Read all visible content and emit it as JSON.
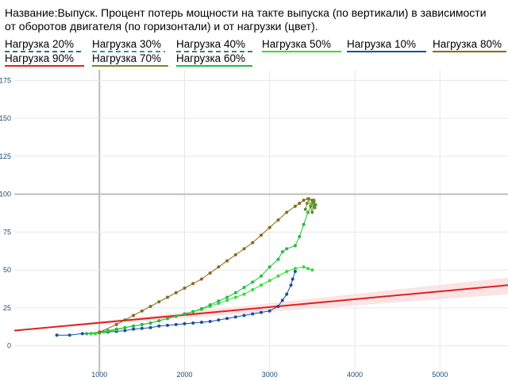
{
  "title": "Название:Выпуск. Процент потерь мощности на такте выпуска (по вертикали) в зависимости от оборотов двигателя (по горизонтали) и от нагрузки (цвет).",
  "colors": {
    "background": "#ffffff",
    "grid": "#e6e6e6",
    "axis": "#bdbdbd",
    "tick_label": "#1f4e79",
    "band": "#fce4e4"
  },
  "legend": [
    {
      "label": "Нагрузка 20%",
      "color": "#1f7a7a",
      "dashed": true
    },
    {
      "label": "Нагрузка 30%",
      "color": "#2a9d8f",
      "dashed": true
    },
    {
      "label": "Нагрузка 40%",
      "color": "#2e8b57",
      "dashed": true
    },
    {
      "label": "Нагрузка 50%",
      "color": "#33dd33",
      "dashed": false
    },
    {
      "label": "Нагрузка 10%",
      "color": "#1a4fa3",
      "dashed": false
    },
    {
      "label": "Нагрузка 80%",
      "color": "#8b6914",
      "dashed": false
    },
    {
      "label": "Нагрузка 90%",
      "color": "#e02020",
      "dashed": false
    },
    {
      "label": "Нагрузка 70%",
      "color": "#6b8e23",
      "dashed": false
    },
    {
      "label": "Нагрузка 60%",
      "color": "#22bb44",
      "dashed": false
    }
  ],
  "chart_data": {
    "type": "line",
    "title": "Название:Выпуск. Процент потерь мощности на такте выпуска (по вертикали) в зависимости от оборотов двигателя (по горизонтали) и от нагрузки (цвет).",
    "xlabel": "",
    "ylabel": "",
    "xlim": [
      0,
      5800
    ],
    "ylim": [
      -18,
      182
    ],
    "x_ticks": [
      "1000",
      "2000",
      "3000",
      "4000",
      "5000"
    ],
    "y_ticks": [
      "0",
      "25",
      "50",
      "75",
      "100",
      "125",
      "150",
      "175"
    ],
    "grid": true,
    "legend_position": "top",
    "trend_band": {
      "x": [
        0,
        5800
      ],
      "upper": [
        10,
        45
      ],
      "lower": [
        10,
        34
      ]
    },
    "trend_line": {
      "color": "#e02020",
      "x": [
        0,
        5800
      ],
      "y": [
        10,
        40
      ]
    },
    "series": [
      {
        "name": "Нагрузка 10%",
        "color": "#1a4fa3",
        "x": [
          500,
          650,
          800,
          900,
          1000,
          1100,
          1200,
          1300,
          1400,
          1500,
          1600,
          1700,
          1800,
          1900,
          2000,
          2100,
          2200,
          2300,
          2400,
          2500,
          2600,
          2700,
          2800,
          2900,
          3000,
          3100,
          3150,
          3200,
          3250,
          3270,
          3300
        ],
        "y": [
          7,
          7,
          8,
          8,
          8.5,
          9,
          9.5,
          10,
          11,
          11.5,
          12,
          13,
          13.5,
          14,
          14.5,
          15,
          15.5,
          16,
          17,
          18,
          19,
          20,
          21,
          22,
          23,
          26,
          30,
          34,
          40,
          44,
          49
        ]
      },
      {
        "name": "Нагрузка 50%",
        "color": "#33dd33",
        "x": [
          850,
          900,
          950,
          1000,
          1050,
          1100,
          1200,
          1300,
          1400,
          1500,
          1600,
          1700,
          1800,
          1900,
          2000,
          2100,
          2200,
          2300,
          2400,
          2500,
          2600,
          2700,
          2800,
          2900,
          3000,
          3100,
          3200,
          3300,
          3400,
          3450,
          3500
        ],
        "y": [
          8,
          8,
          8,
          8.5,
          9,
          9.5,
          10.5,
          12,
          13,
          14,
          15,
          16.5,
          18,
          19.5,
          21,
          22.5,
          24,
          26,
          28,
          30,
          32,
          34,
          37,
          40,
          43,
          46,
          49,
          51,
          52,
          51,
          50
        ]
      },
      {
        "name": "Нагрузка 60%",
        "color": "#22bb44",
        "x": [
          850,
          1000,
          1100,
          1200,
          1300,
          1400,
          1500,
          1600,
          1700,
          1800,
          1900,
          2000,
          2100,
          2200,
          2300,
          2400,
          2500,
          2600,
          2700,
          2800,
          2900,
          3000,
          3100,
          3150,
          3200,
          3300,
          3350,
          3400,
          3450,
          3500,
          3520
        ],
        "y": [
          8,
          9,
          10,
          11,
          12,
          13,
          14,
          15,
          16.5,
          18,
          19.5,
          21,
          22.5,
          24.5,
          27,
          29.5,
          32,
          35,
          38.5,
          42,
          46,
          52,
          57,
          62,
          64,
          66,
          72,
          80,
          88,
          94,
          92
        ]
      },
      {
        "name": "Нагрузка 80%",
        "color": "#8b6914",
        "x": [
          1000,
          1200,
          1300,
          1400,
          1500,
          1600,
          1700,
          1800,
          1900,
          2000,
          2100,
          2200,
          2300,
          2400,
          2500,
          2600,
          2700,
          2800,
          2900,
          3000,
          3100,
          3200,
          3300,
          3350,
          3400,
          3450,
          3500,
          3520
        ],
        "y": [
          9,
          14,
          17,
          20,
          23,
          26,
          29,
          32,
          35,
          38,
          41,
          44,
          48,
          52,
          56,
          60,
          64,
          68,
          73,
          78,
          83,
          88,
          92,
          94,
          96,
          97,
          96,
          95
        ]
      },
      {
        "name": "Нагрузка 70%",
        "color": "#6b8e23",
        "x": [
          3420,
          3440,
          3460,
          3480,
          3500,
          3520,
          3530,
          3540
        ],
        "y": [
          90,
          94,
          97,
          92,
          88,
          96,
          91,
          93
        ]
      }
    ]
  }
}
